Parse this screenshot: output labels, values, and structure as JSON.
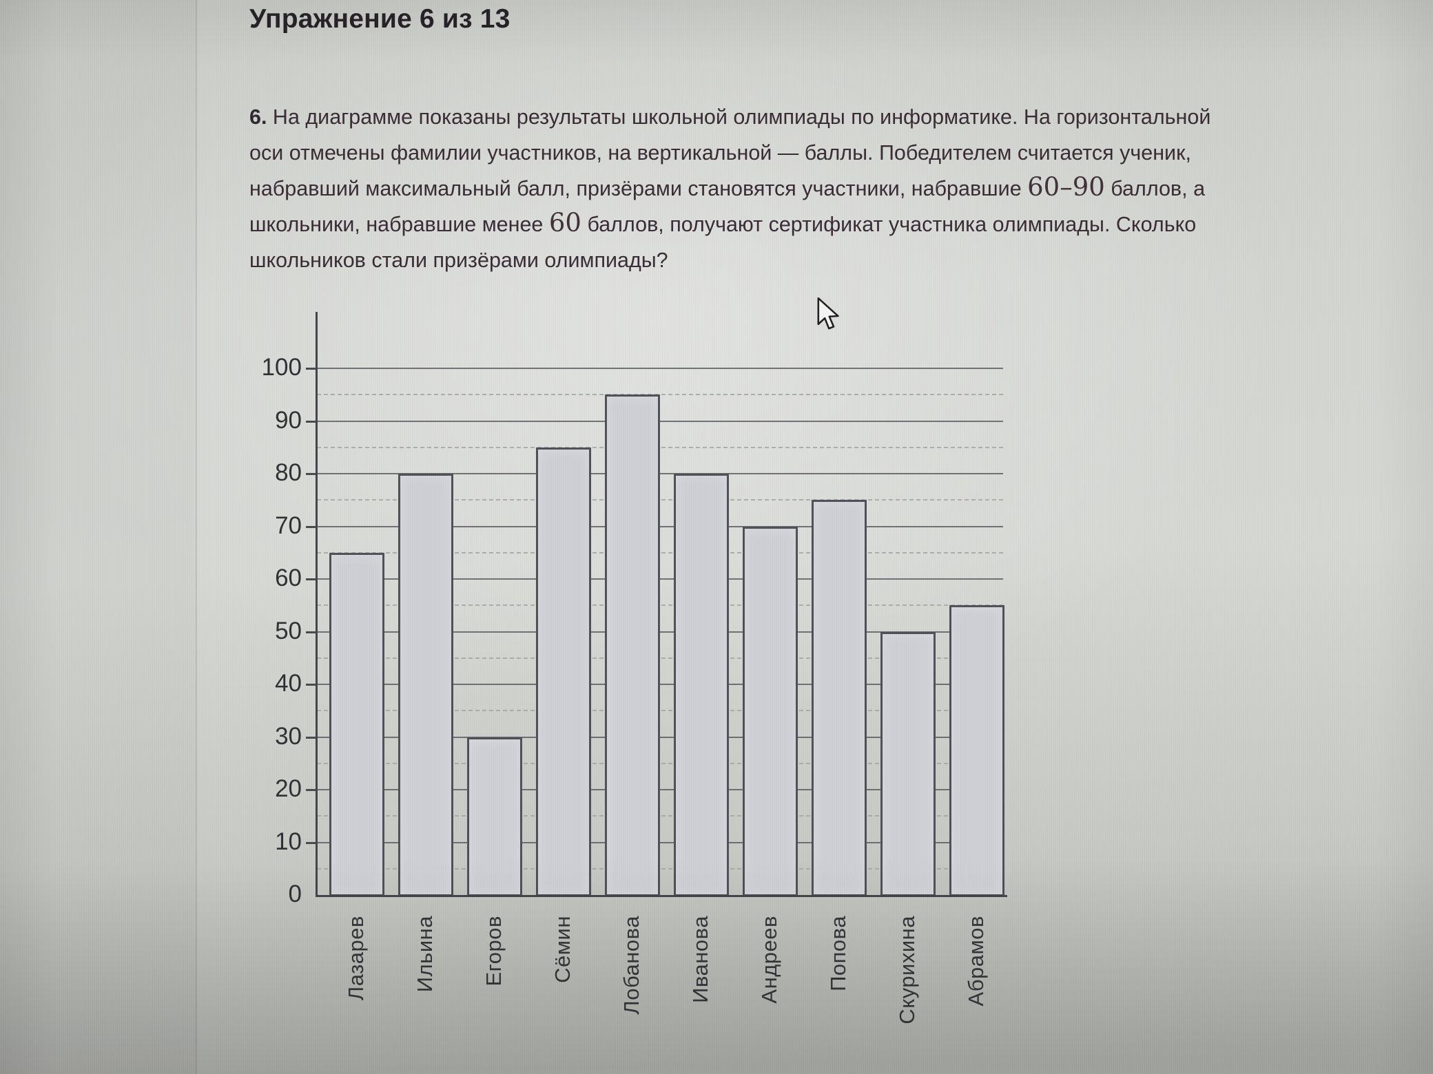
{
  "page": {
    "title": "Упражнение 6 из 13",
    "question": {
      "number": "6.",
      "text_before_range": " На диаграмме показаны результаты школьной олимпиады по информатике. На горизонтальной оси отмечены фамилии участников, на вертикальной — баллы. Победителем считается ученик, набравший максимальный балл, призёрами становятся участники, набравшие ",
      "range_value": "60–90",
      "text_between": " баллов, а школьники, набравшие менее ",
      "threshold_value": "60",
      "text_after": " баллов, получают сертификат участника олимпиады. Сколько школьников стали призёрами олимпиады?"
    }
  },
  "chart_data": {
    "type": "bar",
    "title": "",
    "xlabel": "",
    "ylabel": "",
    "categories": [
      "Лазарев",
      "Ильина",
      "Егоров",
      "Сёмин",
      "Лобанова",
      "Иванова",
      "Андреев",
      "Попова",
      "Скурихина",
      "Абрамов"
    ],
    "values": [
      65,
      80,
      30,
      85,
      95,
      80,
      70,
      75,
      50,
      55
    ],
    "ylim": [
      0,
      100
    ],
    "yticks_labeled": [
      0,
      10,
      20,
      30,
      40,
      50,
      60,
      70,
      80,
      90,
      100
    ],
    "grid_solid_every": 10,
    "grid_dashed_every": 5,
    "legend": "none",
    "bar_orientation": "vertical",
    "x_label_rotation_deg": 90
  },
  "icons": {
    "cursor": "arrow-pointer"
  },
  "colors": {
    "background": "#d2d4d0",
    "bar_fill": "#cdcfd4",
    "bar_border": "#4c4c54",
    "grid_solid": "#55555b",
    "grid_dashed": "#a2a4a4",
    "axis": "#3f3f46",
    "title_text": "#221d24",
    "body_text": "#352731"
  }
}
